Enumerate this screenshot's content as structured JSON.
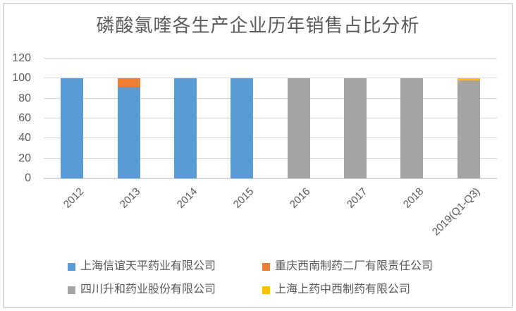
{
  "chart_data": {
    "type": "bar",
    "stacked": true,
    "title": "磷酸氯喹各生产企业历年销售占比分析",
    "categories": [
      "2012",
      "2013",
      "2014",
      "2015",
      "2016",
      "2017",
      "2018",
      "2019(Q1-Q3)"
    ],
    "series": [
      {
        "name": "上海信谊天平药业有限公司",
        "color": "#5B9BD5",
        "values": [
          100,
          92,
          100,
          100,
          0,
          0,
          0,
          0
        ]
      },
      {
        "name": "重庆西南制药二厂有限责任公司",
        "color": "#ED7D31",
        "values": [
          0,
          8,
          0,
          0,
          0,
          0,
          0,
          0
        ]
      },
      {
        "name": "四川升和药业股份有限公司",
        "color": "#A5A5A5",
        "values": [
          0,
          0,
          0,
          0,
          100,
          100,
          100,
          98
        ]
      },
      {
        "name": "上海上药中西制药有限公司",
        "color": "#FFC000",
        "values": [
          0,
          0,
          0,
          0,
          0,
          0,
          0,
          2
        ]
      }
    ],
    "y_ticks": [
      0,
      20,
      40,
      60,
      80,
      100,
      120
    ],
    "ylim": [
      0,
      120
    ],
    "xlabel": "",
    "ylabel": "",
    "grid": true,
    "legend_position": "bottom"
  },
  "colors": {
    "grid": "#D9D9D9",
    "axis": "#D9D9D9",
    "text": "#595959",
    "frame_border": "#D9D9D9",
    "background": "#FFFFFF"
  }
}
